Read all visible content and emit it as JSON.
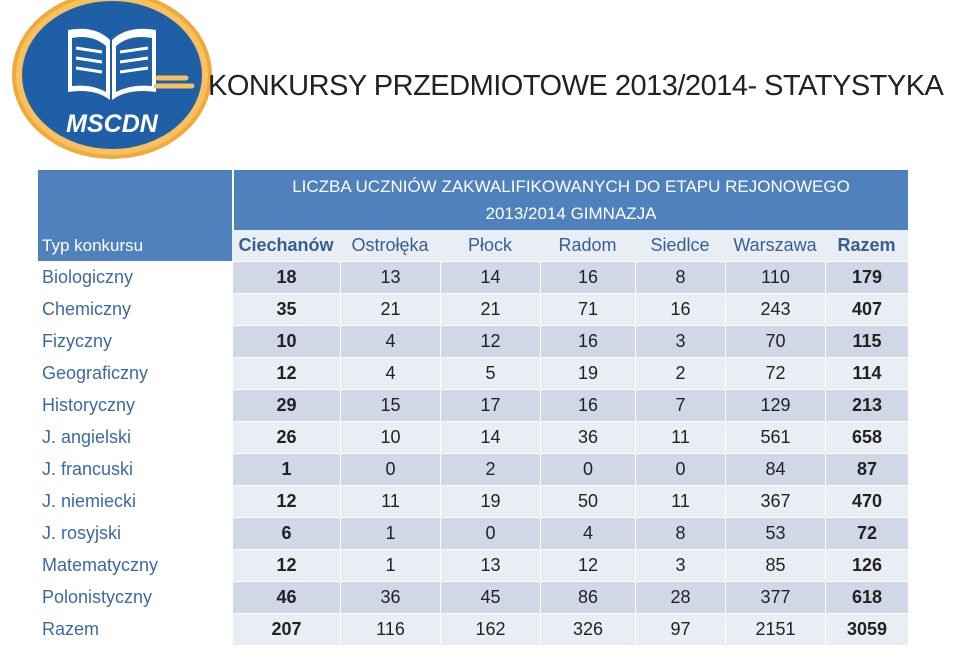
{
  "logo": {
    "text": "MSCDN"
  },
  "title": "KONKURSY PRZEDMIOTOWE 2013/2014- STATYSTYKA",
  "table": {
    "header_line1": "LICZBA UCZNIÓW ZAKWALIFIKOWANYCH DO ETAPU REJONOWEGO",
    "header_line2": "2013/2014 GIMNAZJA",
    "type_label": "Typ konkursu",
    "columns": [
      "Ciechanów",
      "Ostrołęka",
      "Płock",
      "Radom",
      "Siedlce",
      "Warszawa",
      "Razem"
    ],
    "rows": [
      {
        "name": "Biologiczny",
        "values": [
          "18",
          "13",
          "14",
          "16",
          "8",
          "110",
          "179"
        ]
      },
      {
        "name": "Chemiczny",
        "values": [
          "35",
          "21",
          "21",
          "71",
          "16",
          "243",
          "407"
        ]
      },
      {
        "name": "Fizyczny",
        "values": [
          "10",
          "4",
          "12",
          "16",
          "3",
          "70",
          "115"
        ]
      },
      {
        "name": "Geograficzny",
        "values": [
          "12",
          "4",
          "5",
          "19",
          "2",
          "72",
          "114"
        ]
      },
      {
        "name": "Historyczny",
        "values": [
          "29",
          "15",
          "17",
          "16",
          "7",
          "129",
          "213"
        ]
      },
      {
        "name": "J. angielski",
        "values": [
          "26",
          "10",
          "14",
          "36",
          "11",
          "561",
          "658"
        ]
      },
      {
        "name": "J. francuski",
        "values": [
          "1",
          "0",
          "2",
          "0",
          "0",
          "84",
          "87"
        ]
      },
      {
        "name": "J. niemiecki",
        "values": [
          "12",
          "11",
          "19",
          "50",
          "11",
          "367",
          "470"
        ]
      },
      {
        "name": "J. rosyjski",
        "values": [
          "6",
          "1",
          "0",
          "4",
          "8",
          "53",
          "72"
        ]
      },
      {
        "name": "Matematyczny",
        "values": [
          "12",
          "1",
          "13",
          "12",
          "3",
          "85",
          "126"
        ]
      },
      {
        "name": "Polonistyczny",
        "values": [
          "46",
          "36",
          "45",
          "86",
          "28",
          "377",
          "618"
        ]
      },
      {
        "name": "Razem",
        "values": [
          "207",
          "116",
          "162",
          "326",
          "97",
          "2151",
          "3059"
        ]
      }
    ]
  },
  "colors": {
    "header_blue": "#4f81bd",
    "band_dark": "#d0d8e8",
    "band_light": "#e9edf4",
    "logo_blue": "#1f5fa8",
    "logo_orange": "#f2a93b"
  }
}
